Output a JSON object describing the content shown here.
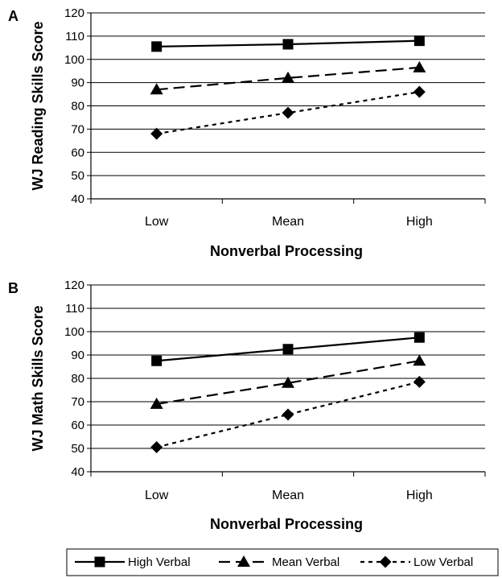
{
  "chart_data": [
    {
      "type": "line",
      "panel_label": "A",
      "categories": [
        "Low",
        "Mean",
        "High"
      ],
      "xlabel": "Nonverbal Processing",
      "ylabel": "WJ Reading Skills Score",
      "ylim": [
        40,
        120
      ],
      "yticks": [
        40,
        50,
        60,
        70,
        80,
        90,
        100,
        110,
        120
      ],
      "grid": true,
      "series": [
        {
          "name": "High Verbal",
          "values": [
            105.5,
            106.5,
            108
          ],
          "marker": "square",
          "dash": "solid"
        },
        {
          "name": "Mean Verbal",
          "values": [
            87,
            92,
            96.5
          ],
          "marker": "triangle",
          "dash": "long-dash"
        },
        {
          "name": "Low Verbal",
          "values": [
            68,
            77,
            86
          ],
          "marker": "diamond",
          "dash": "dotted"
        }
      ]
    },
    {
      "type": "line",
      "panel_label": "B",
      "categories": [
        "Low",
        "Mean",
        "High"
      ],
      "xlabel": "Nonverbal Processing",
      "ylabel": "WJ Math Skills Score",
      "ylim": [
        40,
        120
      ],
      "yticks": [
        40,
        50,
        60,
        70,
        80,
        90,
        100,
        110,
        120
      ],
      "grid": true,
      "series": [
        {
          "name": "High Verbal",
          "values": [
            87.5,
            92.5,
            97.5
          ],
          "marker": "square",
          "dash": "solid"
        },
        {
          "name": "Mean Verbal",
          "values": [
            69,
            78,
            87.5
          ],
          "marker": "triangle",
          "dash": "long-dash"
        },
        {
          "name": "Low Verbal",
          "values": [
            50.5,
            64.5,
            78.5
          ],
          "marker": "diamond",
          "dash": "dotted"
        }
      ]
    }
  ],
  "legend": {
    "placement": "bottom",
    "entries": [
      "High Verbal",
      "Mean Verbal",
      "Low Verbal"
    ]
  }
}
